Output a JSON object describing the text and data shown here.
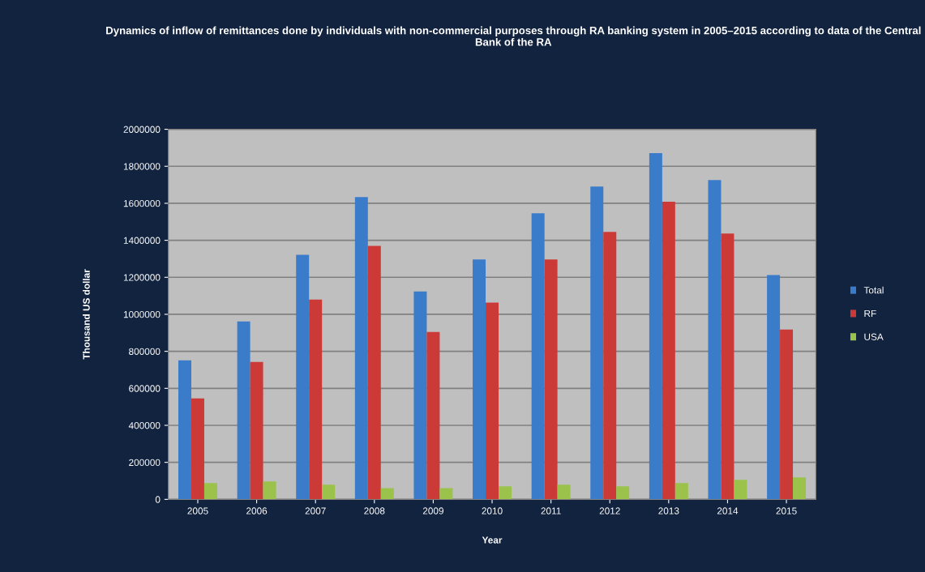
{
  "chart_data": {
    "type": "bar",
    "title": "Dynamics of inflow of remittances done by individuals with non-commercial purposes through RA banking system in 2005–2015 according to data of the Central Bank of the RA",
    "xlabel": "Year",
    "ylabel": "Thousand US dollar",
    "categories": [
      "2005",
      "2006",
      "2007",
      "2008",
      "2009",
      "2010",
      "2011",
      "2012",
      "2013",
      "2014",
      "2015"
    ],
    "series": [
      {
        "name": "Total",
        "color": "#3a7bca",
        "values": [
          751000,
          962000,
          1322000,
          1634000,
          1124000,
          1296000,
          1546000,
          1691000,
          1871000,
          1726000,
          1212000
        ]
      },
      {
        "name": "RF",
        "color": "#cc3a37",
        "values": [
          545000,
          742000,
          1080000,
          1370000,
          905000,
          1063000,
          1296000,
          1445000,
          1608000,
          1436000,
          918000
        ]
      },
      {
        "name": "USA",
        "color": "#9bc24a",
        "values": [
          88000,
          97000,
          79000,
          61000,
          61000,
          70000,
          79000,
          70000,
          88000,
          105000,
          119000
        ]
      }
    ],
    "ylim": [
      0,
      2000000
    ],
    "yticks": [
      0,
      200000,
      400000,
      600000,
      800000,
      1000000,
      1200000,
      1400000,
      1600000,
      1800000,
      2000000
    ],
    "grid": "y",
    "legend": "right"
  }
}
